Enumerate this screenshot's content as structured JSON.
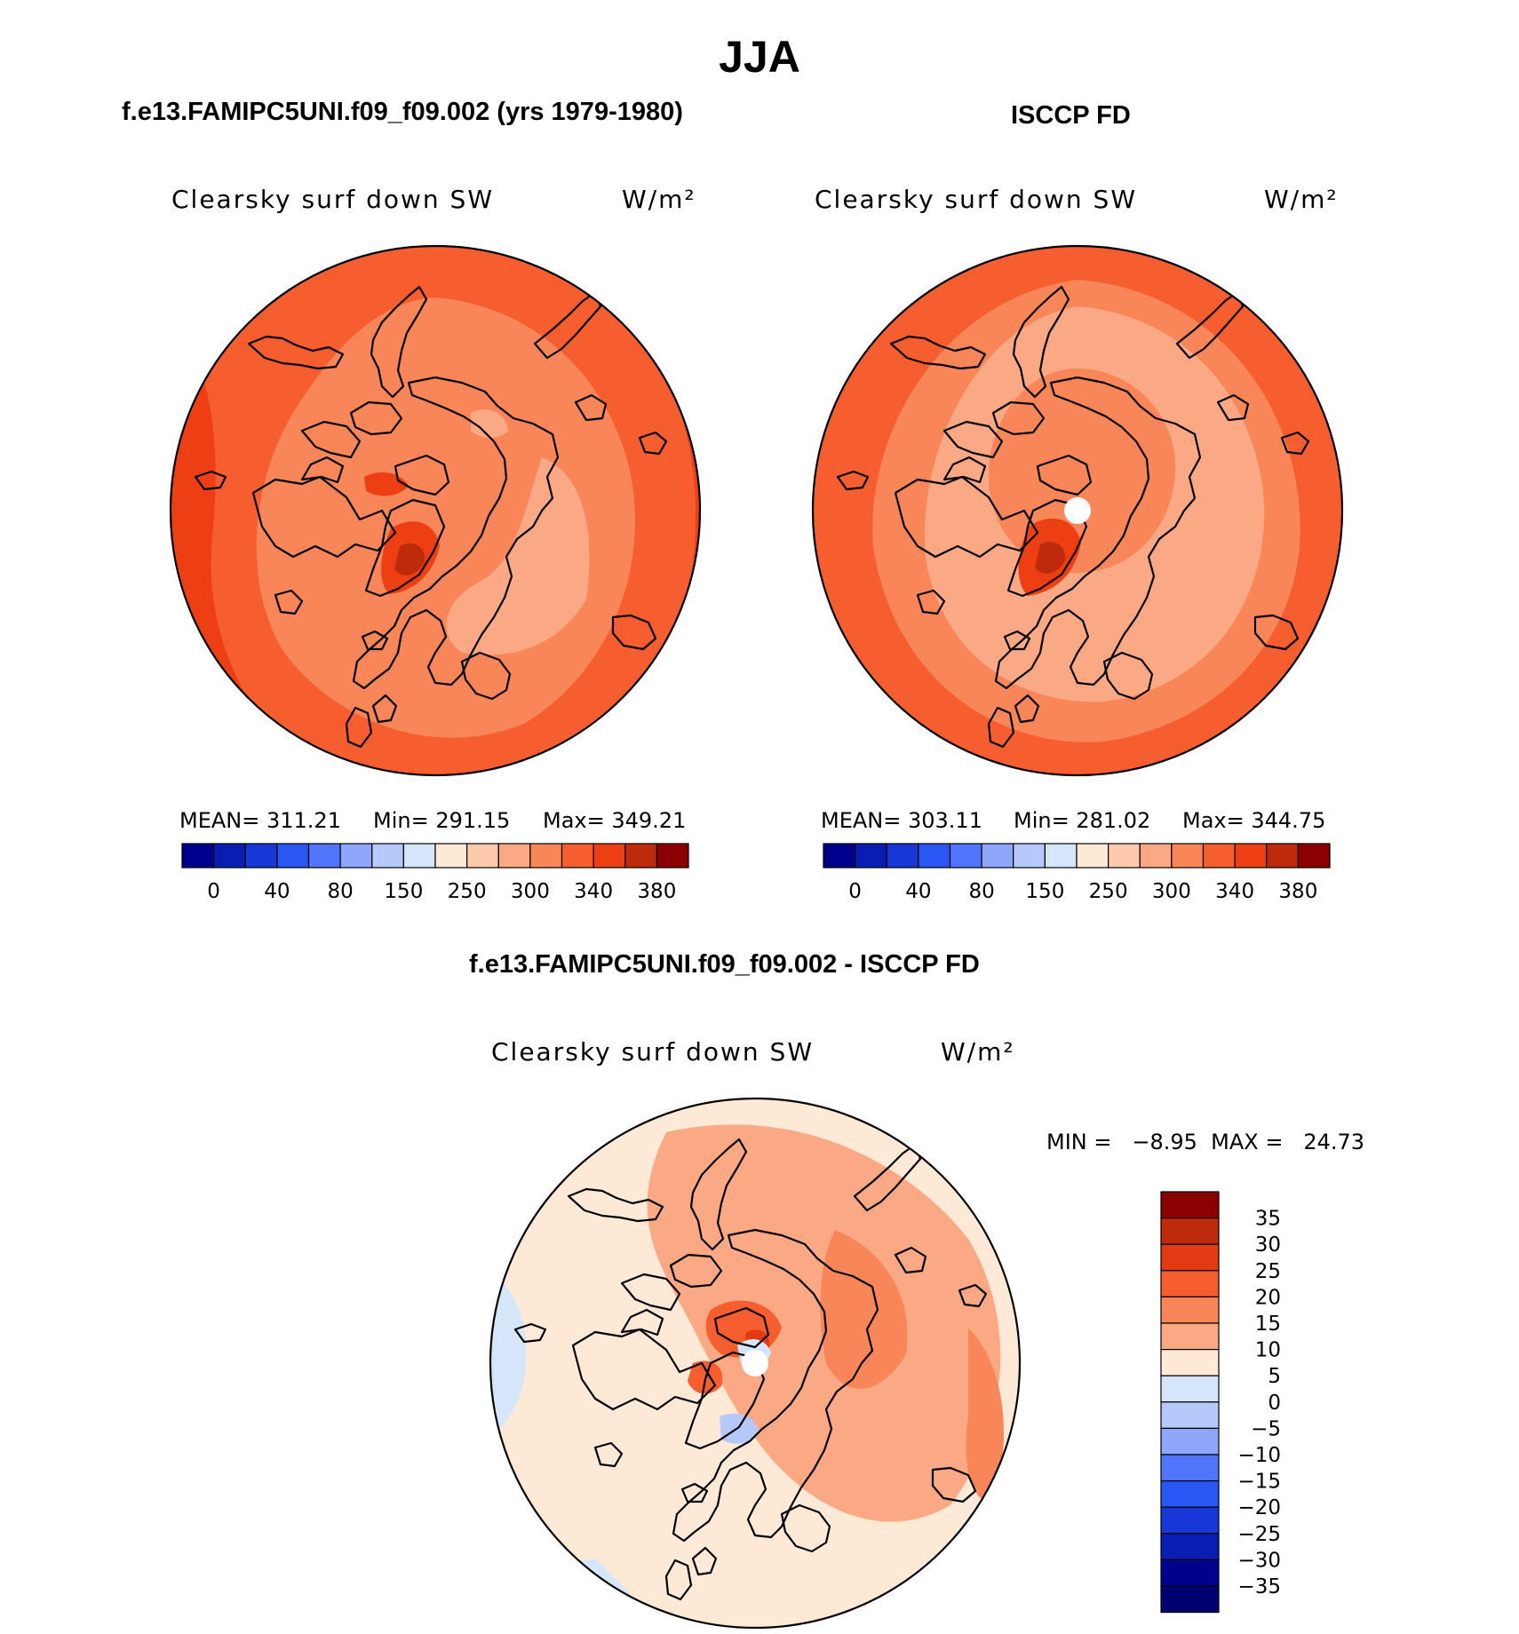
{
  "season_title": "JJA",
  "panels": [
    {
      "case_title": "f.e13.FAMIPC5UNI.f09_f09.002 (yrs 1979-1980)",
      "variable": "Clearsky surf down SW",
      "units": "W/m²",
      "stats": {
        "mean": "MEAN=  311.21",
        "min": "Min=  291.15",
        "max": "Max=  349.21"
      }
    },
    {
      "case_title": "ISCCP FD",
      "variable": "Clearsky surf down SW",
      "units": "W/m²",
      "stats": {
        "mean": "MEAN=  303.11",
        "min": "Min=  281.02",
        "max": "Max=  344.75"
      }
    }
  ],
  "diff_panel": {
    "case_title": "f.e13.FAMIPC5UNI.f09_f09.002 - ISCCP FD",
    "variable": "Clearsky surf down SW",
    "units": "W/m²",
    "stats": "MIN =   −8.95  MAX =   24.73"
  },
  "chart_data": [
    {
      "type": "heatmap",
      "projection": "north-polar-stereographic",
      "colorbar": {
        "orientation": "horizontal",
        "tick_labels": [
          "0",
          "40",
          "80",
          "150",
          "250",
          "300",
          "340",
          "380"
        ],
        "colors": [
          "#00008c",
          "#0a1db2",
          "#1738d6",
          "#2a57f3",
          "#5075fa",
          "#8ea6fb",
          "#b5c9fb",
          "#d6e6fa",
          "#fee8d6",
          "#fdc9ad",
          "#fba885",
          "#f88658",
          "#f65d2f",
          "#ee3e13",
          "#bd2b0c",
          "#8b0000"
        ]
      },
      "stats": {
        "mean": 311.21,
        "min": 291.15,
        "max": 349.21
      }
    },
    {
      "type": "heatmap",
      "projection": "north-polar-stereographic",
      "colorbar": {
        "orientation": "horizontal",
        "tick_labels": [
          "0",
          "40",
          "80",
          "150",
          "250",
          "300",
          "340",
          "380"
        ],
        "colors": [
          "#00008c",
          "#0a1db2",
          "#1738d6",
          "#2a57f3",
          "#5075fa",
          "#8ea6fb",
          "#b5c9fb",
          "#d6e6fa",
          "#fee8d6",
          "#fdc9ad",
          "#fba885",
          "#f88658",
          "#f65d2f",
          "#ee3e13",
          "#bd2b0c",
          "#8b0000"
        ]
      },
      "stats": {
        "mean": 303.11,
        "min": 281.02,
        "max": 344.75
      }
    },
    {
      "type": "heatmap",
      "projection": "north-polar-stereographic",
      "colorbar": {
        "orientation": "vertical",
        "tick_labels": [
          "35",
          "30",
          "25",
          "20",
          "15",
          "10",
          "5",
          "0",
          "−5",
          "−10",
          "−15",
          "−20",
          "−25",
          "−30",
          "−35"
        ],
        "colors": [
          "#8b0000",
          "#bd2b0c",
          "#e23a12",
          "#f65d2f",
          "#f88658",
          "#fba885",
          "#fee8d6",
          "#d6e6fa",
          "#b5c9fb",
          "#8ea6fb",
          "#5075fa",
          "#2a57f3",
          "#1738d6",
          "#0a1db2",
          "#00008c",
          "#000070"
        ]
      },
      "stats": {
        "min": -8.95,
        "max": 24.73
      }
    }
  ]
}
